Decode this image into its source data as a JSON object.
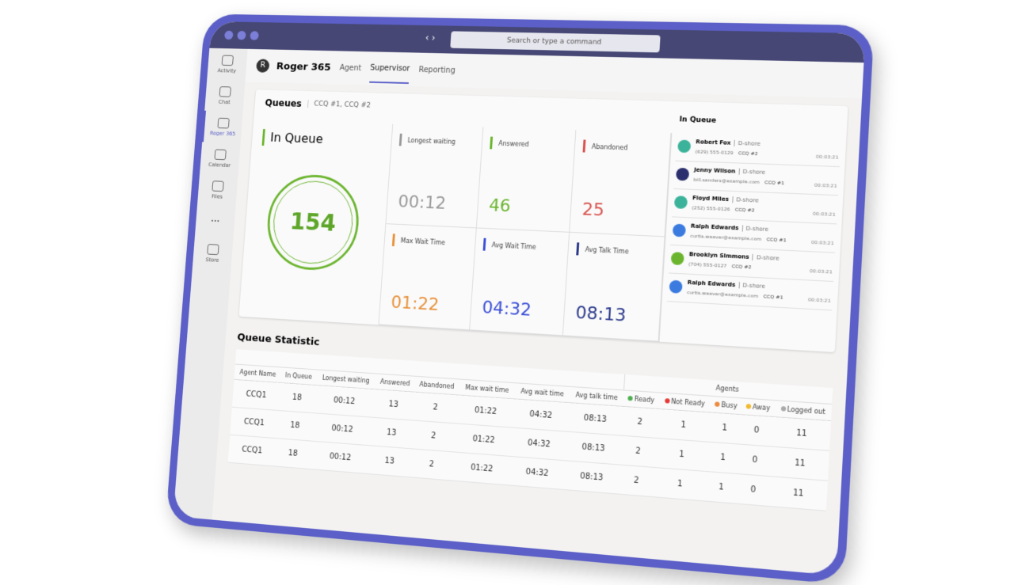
{
  "sidebar": [
    "Activity",
    "Chat",
    "Roger 365",
    "Calendar",
    "Files",
    "Store"
  ],
  "search": "Search or type a command",
  "app": {
    "name": "Roger 365",
    "tabs": [
      "Agent",
      "Supervisor",
      "Reporting"
    ]
  },
  "queues": {
    "title": "Queues",
    "filter": "CCQ #1, CCQ #2"
  },
  "in_queue": {
    "label": "In Queue",
    "value": 154
  },
  "stats": [
    {
      "label": "Longest waiting",
      "value": "00:12"
    },
    {
      "label": "Answered",
      "value": 46
    },
    {
      "label": "Abandoned",
      "value": 25
    },
    {
      "label": "Max Wait Time",
      "value": "01:22"
    },
    {
      "label": "Avg Wait Time",
      "value": "04:32"
    },
    {
      "label": "Avg Talk Time",
      "value": "08:13"
    }
  ],
  "list": {
    "title": "In Queue",
    "items": [
      {
        "name": "Robert Fox",
        "tag": "D-shore",
        "contact": "(629) 555-0129",
        "queue": "CCQ #2",
        "time": "00:03:21"
      },
      {
        "name": "Jenny Wilson",
        "tag": "D-shore",
        "contact": "bill.sanders@example.com",
        "queue": "CCQ #1",
        "time": "00:03:21"
      },
      {
        "name": "Floyd Miles",
        "tag": "D-shore",
        "contact": "(252) 555-0126",
        "queue": "CCQ #2",
        "time": "00:03:21"
      },
      {
        "name": "Ralph Edwards",
        "tag": "D-shore",
        "contact": "curtis.weaver@example.com",
        "queue": "CCQ #1",
        "time": "00:03:21"
      },
      {
        "name": "Brooklyn Simmons",
        "tag": "D-shore",
        "contact": "(704) 555-0127",
        "queue": "CCQ #2",
        "time": "00:03:21"
      },
      {
        "name": "Ralph Edwards",
        "tag": "D-shore",
        "contact": "curtis.weaver@example.com",
        "queue": "CCQ #1",
        "time": "00:03:21"
      }
    ]
  },
  "table": {
    "title": "Queue Statistic",
    "group": "Agents",
    "columns": [
      "Agent Name",
      "In Queue",
      "Longest waiting",
      "Answered",
      "Abandoned",
      "Max wait time",
      "Avg wait time",
      "Avg talk time",
      "Ready",
      "Not Ready",
      "Busy",
      "Away",
      "Logged out"
    ],
    "rows": [
      [
        "CCQ1",
        18,
        "00:12",
        13,
        2,
        "01:22",
        "04:32",
        "08:13",
        2,
        1,
        1,
        0,
        11
      ],
      [
        "CCQ1",
        18,
        "00:12",
        13,
        2,
        "01:22",
        "04:32",
        "08:13",
        2,
        1,
        1,
        0,
        11
      ],
      [
        "CCQ1",
        18,
        "00:12",
        13,
        2,
        "01:22",
        "04:32",
        "08:13",
        2,
        1,
        1,
        0,
        11
      ]
    ]
  }
}
